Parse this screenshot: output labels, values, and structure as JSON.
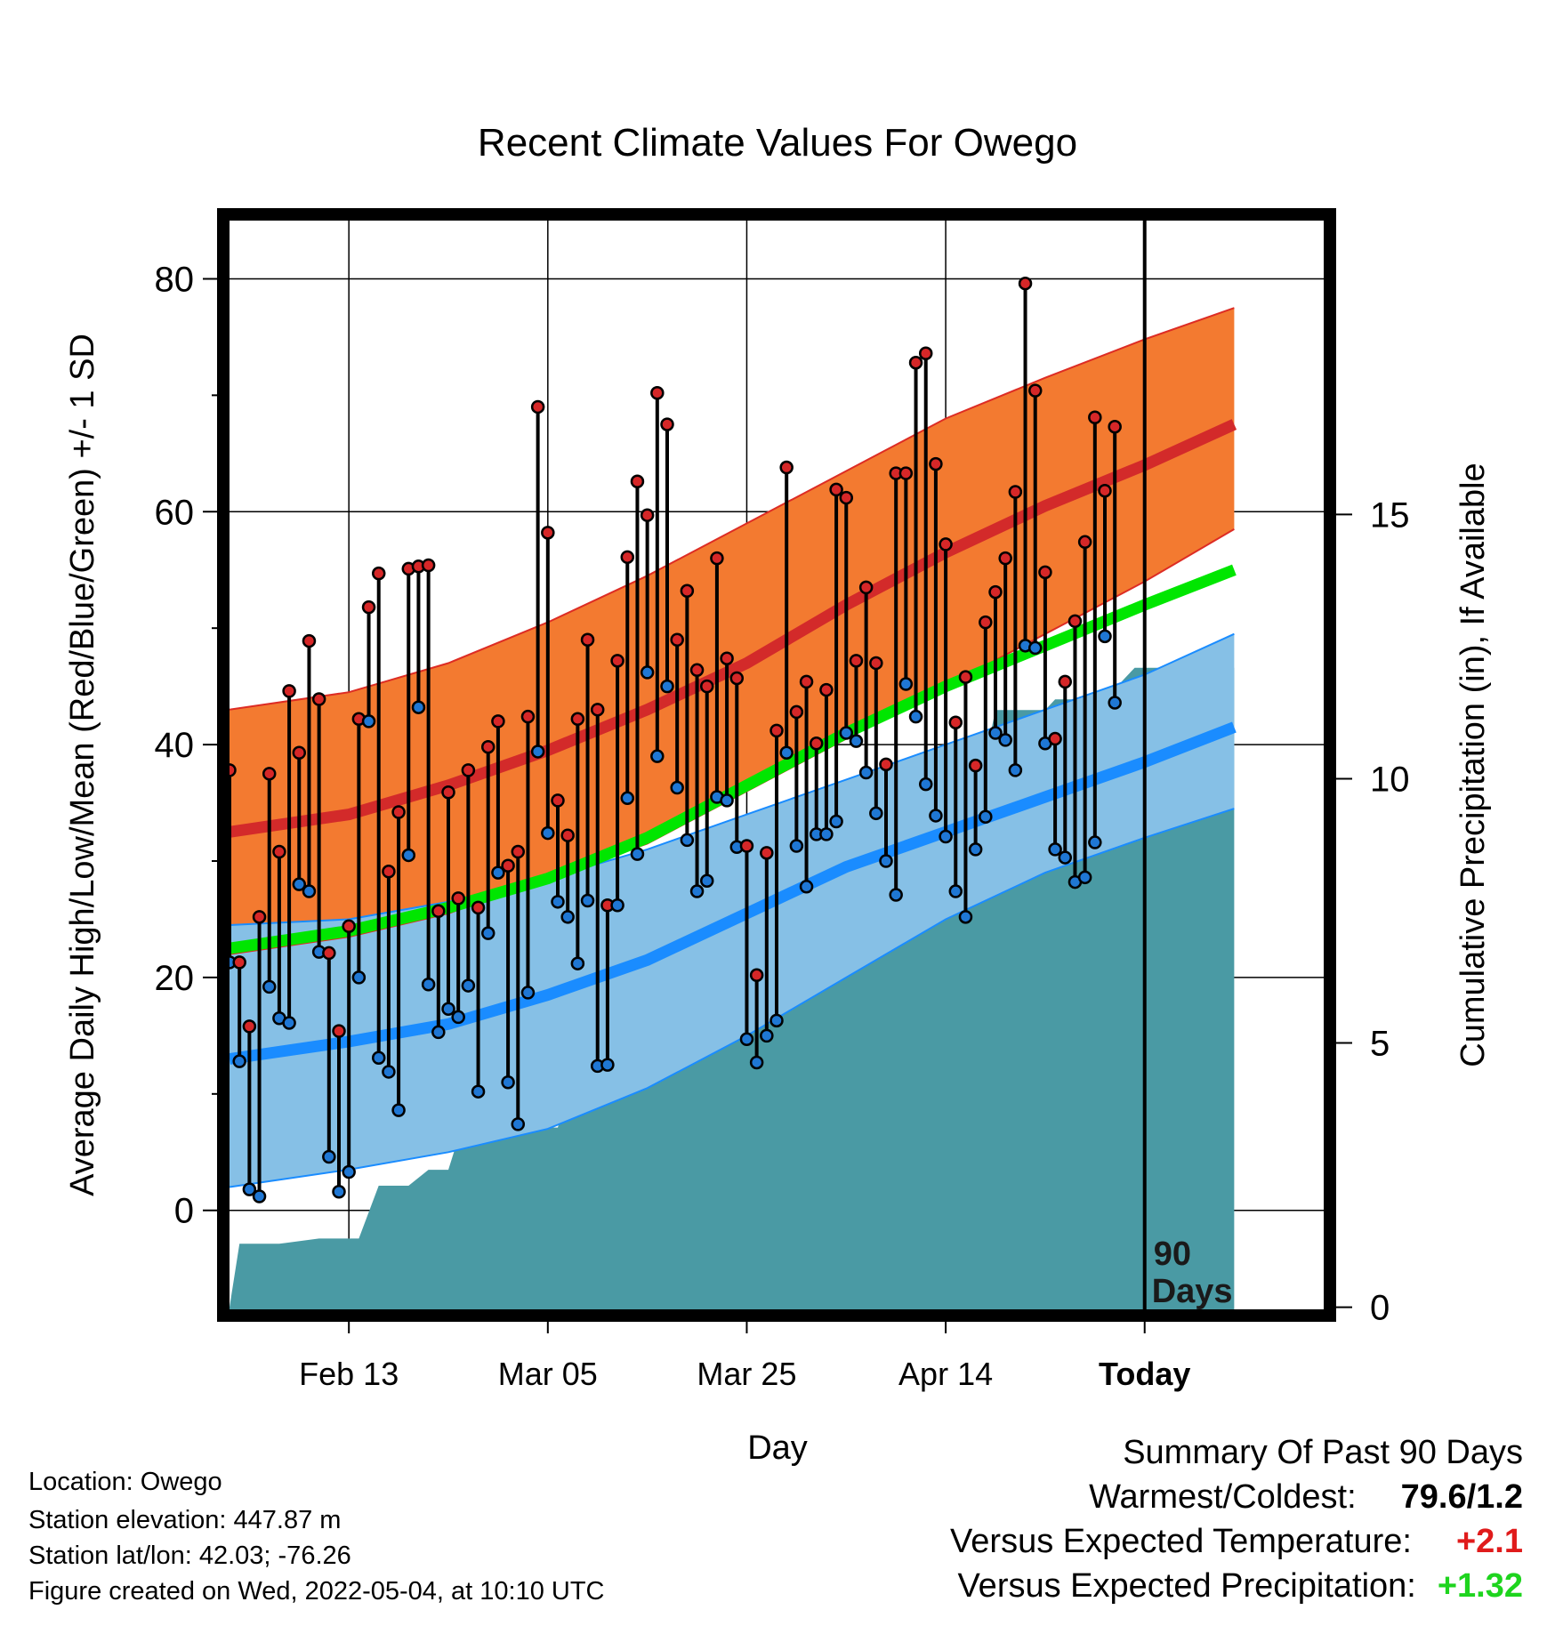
{
  "chart_data": {
    "type": "line",
    "title": "Recent Climate Values For Owego",
    "xlabel": "Day",
    "ylabel": "Average Daily High/Low/Mean (Red/Blue/Green) +/- 1 SD",
    "y2label": "Cumulative Precipitation (in), If Available",
    "xlim": [
      -9,
      101
    ],
    "ylim": [
      -8.5,
      85
    ],
    "y2lim": [
      -0.04,
      20.56
    ],
    "x_ticks": [
      {
        "x": 3,
        "label": "Feb 13"
      },
      {
        "x": 23,
        "label": "Mar 05"
      },
      {
        "x": 43,
        "label": "Mar 25"
      },
      {
        "x": 63,
        "label": "Apr 14"
      },
      {
        "x": 83,
        "label": "Today"
      }
    ],
    "y_ticks": [
      0,
      20,
      40,
      60,
      80
    ],
    "y_minor_ticks": [
      10,
      30,
      50,
      70
    ],
    "y2_ticks": [
      0,
      5,
      10,
      15
    ],
    "grid": true,
    "today_marker": {
      "x": 83,
      "label_line1": "90",
      "label_line2": "Days"
    },
    "colors": {
      "high_band": "#f37a30",
      "high_band_edge": "#dd2c24",
      "high_mean": "#d32a2a",
      "low_band": "#86c0e6",
      "low_band_edge": "#1a8cff",
      "low_mean": "#1a8cff",
      "mean": "#00e600",
      "precip": "#4a9aa4",
      "high_point": "#d62728",
      "low_point": "#1f77d4",
      "warm_value": "#e01b1b",
      "precip_value": "#1ed41e"
    },
    "normal_high_mean": [
      [
        -9,
        32.5
      ],
      [
        3,
        34
      ],
      [
        13,
        36.5
      ],
      [
        23,
        39.5
      ],
      [
        33,
        43
      ],
      [
        43,
        47
      ],
      [
        53,
        52
      ],
      [
        63,
        56.5
      ],
      [
        73,
        60.5
      ],
      [
        83,
        64
      ],
      [
        92,
        67.5
      ]
    ],
    "normal_high_upper": [
      [
        -9,
        43
      ],
      [
        3,
        44.5
      ],
      [
        13,
        47
      ],
      [
        23,
        50.5
      ],
      [
        33,
        54.5
      ],
      [
        43,
        59
      ],
      [
        53,
        63.5
      ],
      [
        63,
        68
      ],
      [
        73,
        71.5
      ],
      [
        83,
        74.8
      ],
      [
        92,
        77.5
      ]
    ],
    "normal_high_lower": [
      [
        -9,
        22
      ],
      [
        3,
        23.5
      ],
      [
        13,
        25.5
      ],
      [
        23,
        28.5
      ],
      [
        33,
        31.5
      ],
      [
        43,
        36
      ],
      [
        53,
        40.5
      ],
      [
        63,
        45
      ],
      [
        73,
        49.5
      ],
      [
        83,
        54
      ],
      [
        92,
        58.5
      ]
    ],
    "normal_low_mean": [
      [
        -9,
        13
      ],
      [
        3,
        14.5
      ],
      [
        13,
        16
      ],
      [
        23,
        18.5
      ],
      [
        33,
        21.5
      ],
      [
        43,
        25.5
      ],
      [
        53,
        29.5
      ],
      [
        63,
        32.5
      ],
      [
        73,
        35.5
      ],
      [
        83,
        38.5
      ],
      [
        92,
        41.5
      ]
    ],
    "normal_low_upper": [
      [
        -9,
        24.5
      ],
      [
        3,
        25
      ],
      [
        13,
        26.5
      ],
      [
        23,
        28.5
      ],
      [
        33,
        31
      ],
      [
        43,
        34
      ],
      [
        53,
        37
      ],
      [
        63,
        40
      ],
      [
        73,
        43
      ],
      [
        83,
        46
      ],
      [
        92,
        49.5
      ]
    ],
    "normal_low_lower": [
      [
        -9,
        2
      ],
      [
        3,
        3.5
      ],
      [
        13,
        5
      ],
      [
        23,
        7
      ],
      [
        33,
        10.5
      ],
      [
        43,
        15
      ],
      [
        53,
        20
      ],
      [
        63,
        25
      ],
      [
        73,
        29
      ],
      [
        83,
        32
      ],
      [
        92,
        34.5
      ]
    ],
    "normal_mean": [
      [
        -9,
        22.5
      ],
      [
        3,
        24
      ],
      [
        13,
        26
      ],
      [
        23,
        28.5
      ],
      [
        33,
        32
      ],
      [
        43,
        36.5
      ],
      [
        53,
        41
      ],
      [
        63,
        45
      ],
      [
        73,
        48.5
      ],
      [
        83,
        52
      ],
      [
        92,
        55
      ]
    ],
    "precip_cumulative": [
      [
        -9,
        0
      ],
      [
        -8,
        1.2
      ],
      [
        -4,
        1.2
      ],
      [
        0,
        1.3
      ],
      [
        4,
        1.3
      ],
      [
        6,
        2.3
      ],
      [
        9,
        2.3
      ],
      [
        11,
        2.6
      ],
      [
        13,
        2.6
      ],
      [
        14,
        3.2
      ],
      [
        16,
        3.2
      ],
      [
        18,
        3.3
      ],
      [
        21,
        3.4
      ],
      [
        24,
        3.4
      ],
      [
        25,
        4
      ],
      [
        27,
        4.5
      ],
      [
        29,
        4.5
      ],
      [
        30,
        5.6
      ],
      [
        33,
        5.6
      ],
      [
        35,
        5.6
      ],
      [
        36,
        5.9
      ],
      [
        39,
        5.9
      ],
      [
        40,
        6
      ],
      [
        41,
        6
      ],
      [
        42,
        6.5
      ],
      [
        44,
        6.6
      ],
      [
        48,
        6.7
      ],
      [
        49,
        7.1
      ],
      [
        51,
        7.1
      ],
      [
        52,
        7.3
      ],
      [
        54,
        7.3
      ],
      [
        55,
        7.5
      ],
      [
        56,
        8.6
      ],
      [
        59,
        8.7
      ],
      [
        60,
        8.8
      ],
      [
        62,
        9
      ],
      [
        63,
        9
      ],
      [
        64,
        9.1
      ],
      [
        65,
        9.6
      ],
      [
        66,
        10.4
      ],
      [
        67,
        10.4
      ],
      [
        68,
        11.3
      ],
      [
        71,
        11.3
      ],
      [
        73,
        11.3
      ],
      [
        74,
        11.5
      ],
      [
        79,
        11.5
      ],
      [
        80,
        11.7
      ],
      [
        82,
        12.1
      ],
      [
        92,
        12.1
      ]
    ],
    "daily": [
      {
        "x": -9,
        "high": 37.8,
        "low": 21.3
      },
      {
        "x": -8,
        "high": 21.3,
        "low": 12.8
      },
      {
        "x": -7,
        "high": 15.8,
        "low": 1.8
      },
      {
        "x": -6,
        "high": 25.2,
        "low": 1.2
      },
      {
        "x": -5,
        "high": 37.5,
        "low": 19.2
      },
      {
        "x": -4,
        "high": 30.8,
        "low": 16.5
      },
      {
        "x": -3,
        "high": 44.6,
        "low": 16.1
      },
      {
        "x": -2,
        "high": 39.3,
        "low": 28
      },
      {
        "x": -1,
        "high": 48.9,
        "low": 27.4
      },
      {
        "x": 0,
        "high": 43.9,
        "low": 22.2
      },
      {
        "x": 1,
        "high": 22.1,
        "low": 4.6
      },
      {
        "x": 2,
        "high": 15.4,
        "low": 1.6
      },
      {
        "x": 3,
        "high": 24.4,
        "low": 3.3
      },
      {
        "x": 4,
        "high": 42.2,
        "low": 20
      },
      {
        "x": 5,
        "high": 51.8,
        "low": 42
      },
      {
        "x": 6,
        "high": 54.7,
        "low": 13.1
      },
      {
        "x": 7,
        "high": 29.1,
        "low": 11.9
      },
      {
        "x": 8,
        "high": 34.2,
        "low": 8.6
      },
      {
        "x": 9,
        "high": 55.1,
        "low": 30.5
      },
      {
        "x": 10,
        "high": 55.3,
        "low": 43.2
      },
      {
        "x": 11,
        "high": 55.4,
        "low": 19.4
      },
      {
        "x": 12,
        "high": 25.7,
        "low": 15.3
      },
      {
        "x": 13,
        "high": 35.9,
        "low": 17.3
      },
      {
        "x": 14,
        "high": 26.8,
        "low": 16.6
      },
      {
        "x": 15,
        "high": 37.8,
        "low": 19.3
      },
      {
        "x": 16,
        "high": 26,
        "low": 10.2
      },
      {
        "x": 17,
        "high": 39.8,
        "low": 23.8
      },
      {
        "x": 18,
        "high": 42,
        "low": 29
      },
      {
        "x": 19,
        "high": 29.6,
        "low": 11
      },
      {
        "x": 20,
        "high": 30.8,
        "low": 7.4
      },
      {
        "x": 21,
        "high": 42.4,
        "low": 18.7
      },
      {
        "x": 22,
        "high": 69,
        "low": 39.4
      },
      {
        "x": 23,
        "high": 58.2,
        "low": 32.4
      },
      {
        "x": 24,
        "high": 35.2,
        "low": 26.5
      },
      {
        "x": 25,
        "high": 32.2,
        "low": 25.2
      },
      {
        "x": 26,
        "high": 42.2,
        "low": 21.2
      },
      {
        "x": 27,
        "high": 49,
        "low": 26.6
      },
      {
        "x": 28,
        "high": 43,
        "low": 12.4
      },
      {
        "x": 29,
        "high": 26.2,
        "low": 12.5
      },
      {
        "x": 30,
        "high": 47.2,
        "low": 26.2
      },
      {
        "x": 31,
        "high": 56.1,
        "low": 35.4
      },
      {
        "x": 32,
        "high": 62.6,
        "low": 30.6
      },
      {
        "x": 33,
        "high": 59.7,
        "low": 46.2
      },
      {
        "x": 34,
        "high": 70.2,
        "low": 39
      },
      {
        "x": 35,
        "high": 67.5,
        "low": 45
      },
      {
        "x": 36,
        "high": 49,
        "low": 36.3
      },
      {
        "x": 37,
        "high": 53.2,
        "low": 31.8
      },
      {
        "x": 38,
        "high": 46.4,
        "low": 27.4
      },
      {
        "x": 39,
        "high": 45,
        "low": 28.3
      },
      {
        "x": 40,
        "high": 56,
        "low": 35.5
      },
      {
        "x": 41,
        "high": 47.4,
        "low": 35.2
      },
      {
        "x": 42,
        "high": 45.7,
        "low": 31.2
      },
      {
        "x": 43,
        "high": 31.3,
        "low": 14.7
      },
      {
        "x": 44,
        "high": 20.2,
        "low": 12.7
      },
      {
        "x": 45,
        "high": 30.7,
        "low": 15
      },
      {
        "x": 46,
        "high": 41.2,
        "low": 16.3
      },
      {
        "x": 47,
        "high": 63.8,
        "low": 39.3
      },
      {
        "x": 48,
        "high": 42.8,
        "low": 31.3
      },
      {
        "x": 49,
        "high": 45.4,
        "low": 27.8
      },
      {
        "x": 50,
        "high": 40.1,
        "low": 32.3
      },
      {
        "x": 51,
        "high": 44.7,
        "low": 32.3
      },
      {
        "x": 52,
        "high": 61.9,
        "low": 33.4
      },
      {
        "x": 53,
        "high": 61.2,
        "low": 41
      },
      {
        "x": 54,
        "high": 47.2,
        "low": 40.3
      },
      {
        "x": 55,
        "high": 53.5,
        "low": 37.6
      },
      {
        "x": 56,
        "high": 47,
        "low": 34.1
      },
      {
        "x": 57,
        "high": 38.3,
        "low": 30
      },
      {
        "x": 58,
        "high": 63.3,
        "low": 27.1
      },
      {
        "x": 59,
        "high": 63.3,
        "low": 45.2
      },
      {
        "x": 60,
        "high": 72.8,
        "low": 42.4
      },
      {
        "x": 61,
        "high": 73.6,
        "low": 36.6
      },
      {
        "x": 62,
        "high": 64.1,
        "low": 33.9
      },
      {
        "x": 63,
        "high": 57.2,
        "low": 32.1
      },
      {
        "x": 64,
        "high": 41.9,
        "low": 27.4
      },
      {
        "x": 65,
        "high": 45.8,
        "low": 25.2
      },
      {
        "x": 66,
        "high": 38.2,
        "low": 31
      },
      {
        "x": 67,
        "high": 50.5,
        "low": 33.8
      },
      {
        "x": 68,
        "high": 53.1,
        "low": 41
      },
      {
        "x": 69,
        "high": 56,
        "low": 40.4
      },
      {
        "x": 70,
        "high": 61.7,
        "low": 37.8
      },
      {
        "x": 71,
        "high": 79.6,
        "low": 48.5
      },
      {
        "x": 72,
        "high": 70.4,
        "low": 48.3
      },
      {
        "x": 73,
        "high": 54.8,
        "low": 40.1
      },
      {
        "x": 74,
        "high": 40.5,
        "low": 31
      },
      {
        "x": 75,
        "high": 45.4,
        "low": 30.3
      },
      {
        "x": 76,
        "high": 50.6,
        "low": 28.2
      },
      {
        "x": 77,
        "high": 57.4,
        "low": 28.6
      },
      {
        "x": 78,
        "high": 68.1,
        "low": 31.6
      },
      {
        "x": 79,
        "high": 61.8,
        "low": 49.3
      },
      {
        "x": 80,
        "high": 67.3,
        "low": 43.6
      }
    ]
  },
  "footer": {
    "location": "Location: Owego",
    "elevation": "Station elevation: 447.87 m",
    "latlon": "Station lat/lon: 42.03; -76.26",
    "created": "Figure created on Wed, 2022-05-04, at 10:10 UTC"
  },
  "summary": {
    "heading": "Summary Of Past 90 Days",
    "warmest_coldest_label": "Warmest/Coldest:",
    "warmest_coldest_value": "79.6/1.2",
    "temp_label": "Versus Expected Temperature:",
    "temp_value": "+2.1",
    "precip_label": "Versus Expected Precipitation:",
    "precip_value": "+1.32"
  }
}
